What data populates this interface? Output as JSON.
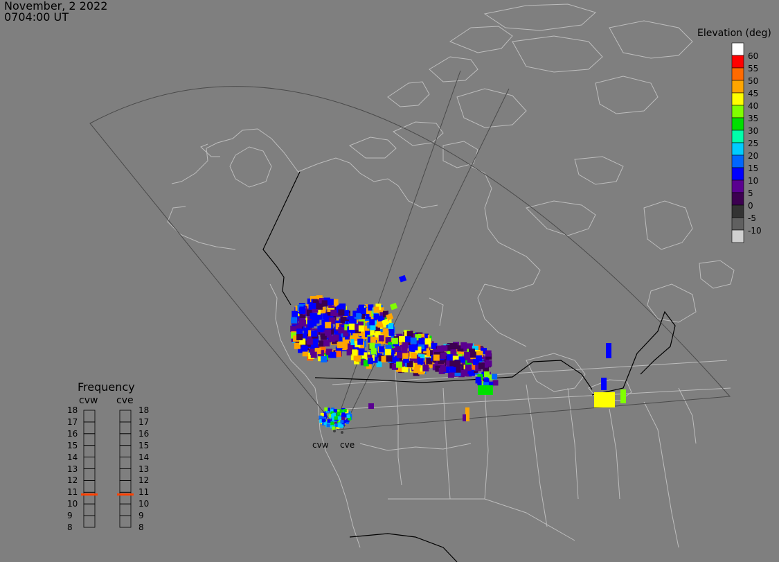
{
  "header": {
    "date": "November, 2 2022",
    "time": "0704:00 UT"
  },
  "elevation_legend": {
    "title": "Elevation (deg)",
    "entries": [
      {
        "label": "60",
        "color": "#ffffff"
      },
      {
        "label": "55",
        "color": "#ff0000"
      },
      {
        "label": "50",
        "color": "#ff6a00"
      },
      {
        "label": "45",
        "color": "#ffa500"
      },
      {
        "label": "40",
        "color": "#ffff00"
      },
      {
        "label": "35",
        "color": "#80ff00"
      },
      {
        "label": "30",
        "color": "#00e000"
      },
      {
        "label": "25",
        "color": "#00ffaa"
      },
      {
        "label": "20",
        "color": "#00ccff"
      },
      {
        "label": "15",
        "color": "#0066ff"
      },
      {
        "label": "10",
        "color": "#0000ff"
      },
      {
        "label": "5",
        "color": "#5a0090"
      },
      {
        "label": "0",
        "color": "#3c0050"
      },
      {
        "label": "-5",
        "color": "#333333"
      },
      {
        "label": "-10",
        "color": "#606060"
      },
      {
        "label": "",
        "color": "#d0d0d0"
      }
    ]
  },
  "frequency_panel": {
    "title": "Frequency",
    "radars": [
      {
        "name": "cvw",
        "frequency": 10.8
      },
      {
        "name": "cve",
        "frequency": 10.8
      }
    ],
    "scale_labels": [
      "18",
      "17",
      "16",
      "15",
      "14",
      "13",
      "12",
      "11",
      "10",
      "9",
      "8"
    ],
    "indicator_color": "#ff4000"
  },
  "map": {
    "radar_sites": [
      {
        "name": "cvw"
      },
      {
        "name": "cve"
      }
    ],
    "colors": {
      "background": "#7f7f7f",
      "coastline": "#bdbdbd",
      "fov": "#4a4a4a",
      "border": "#000000"
    }
  }
}
